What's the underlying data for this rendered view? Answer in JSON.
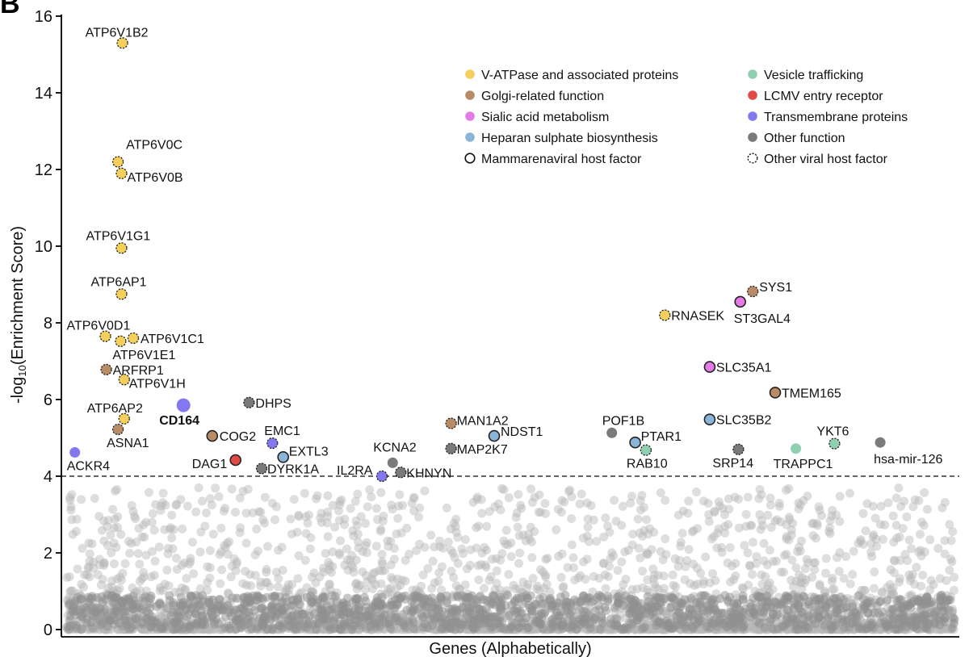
{
  "panel_label": "B",
  "chart_data": {
    "type": "scatter",
    "title": "",
    "xlabel": "Genes (Alphabetically)",
    "ylabel_prefix": "-log",
    "ylabel_subscript": "10",
    "ylabel_suffix": "(Enrichment Score)",
    "ylim": [
      0,
      16
    ],
    "yticks": [
      0,
      2,
      4,
      6,
      8,
      10,
      12,
      14,
      16
    ],
    "threshold": 4,
    "grid": false,
    "legend_position": "top-right",
    "colors": {
      "vatpase": "#f5cf5c",
      "golgi": "#b98c68",
      "sialic": "#e47ae6",
      "heparan": "#8ab4d8",
      "vesicle": "#8fd0b0",
      "lcmv": "#e04c45",
      "transmembrane": "#8378f0",
      "other": "#7a7a7a",
      "background": "#b5b5b5"
    },
    "legend": [
      {
        "key": "vatpase",
        "label": "V-ATPase and associated proteins",
        "style": "fill"
      },
      {
        "key": "golgi",
        "label": "Golgi-related function",
        "style": "fill"
      },
      {
        "key": "sialic",
        "label": "Sialic acid metabolism",
        "style": "fill"
      },
      {
        "key": "heparan",
        "label": "Heparan sulphate biosynthesis",
        "style": "fill"
      },
      {
        "key": "mamma",
        "label": "Mammarenaviral host factor",
        "style": "solid-ring"
      },
      {
        "key": "vesicle",
        "label": "Vesicle trafficking",
        "style": "fill"
      },
      {
        "key": "lcmv",
        "label": "LCMV entry receptor",
        "style": "fill"
      },
      {
        "key": "transmembrane",
        "label": "Transmembrane proteins",
        "style": "fill"
      },
      {
        "key": "other",
        "label": "Other function",
        "style": "fill"
      },
      {
        "key": "otherviral",
        "label": "Other viral host factor",
        "style": "dashed-ring"
      }
    ],
    "points": [
      {
        "gene": "ATP6V1B2",
        "x": 0.068,
        "y": 15.3,
        "cat": "vatpase",
        "ring": "dashed",
        "size": "normal"
      },
      {
        "gene": "ATP6V0C",
        "x": 0.063,
        "y": 12.2,
        "cat": "vatpase",
        "ring": "dashed",
        "size": "normal"
      },
      {
        "gene": "ATP6V0B",
        "x": 0.067,
        "y": 11.9,
        "cat": "vatpase",
        "ring": "dashed",
        "size": "normal"
      },
      {
        "gene": "ATP6V1G1",
        "x": 0.067,
        "y": 9.95,
        "cat": "vatpase",
        "ring": "dashed",
        "size": "normal"
      },
      {
        "gene": "ATP6AP1",
        "x": 0.067,
        "y": 8.75,
        "cat": "vatpase",
        "ring": "dashed",
        "size": "normal"
      },
      {
        "gene": "ATP6V0D1",
        "x": 0.049,
        "y": 7.65,
        "cat": "vatpase",
        "ring": "dashed",
        "size": "normal"
      },
      {
        "gene": "ATP6V1E1",
        "x": 0.066,
        "y": 7.52,
        "cat": "vatpase",
        "ring": "dashed",
        "size": "normal"
      },
      {
        "gene": "ATP6V1C1",
        "x": 0.08,
        "y": 7.6,
        "cat": "vatpase",
        "ring": "dashed",
        "size": "normal"
      },
      {
        "gene": "ARFRP1",
        "x": 0.05,
        "y": 6.78,
        "cat": "golgi",
        "ring": "dashed",
        "size": "normal"
      },
      {
        "gene": "ATP6V1H",
        "x": 0.07,
        "y": 6.52,
        "cat": "vatpase",
        "ring": "dashed",
        "size": "normal"
      },
      {
        "gene": "ATP6AP2",
        "x": 0.07,
        "y": 5.5,
        "cat": "vatpase",
        "ring": "dashed",
        "size": "normal"
      },
      {
        "gene": "ASNA1",
        "x": 0.063,
        "y": 5.22,
        "cat": "golgi",
        "ring": "dashed",
        "size": "normal"
      },
      {
        "gene": "CD164",
        "x": 0.136,
        "y": 5.85,
        "cat": "transmembrane",
        "ring": "none",
        "size": "large"
      },
      {
        "gene": "ACKR4",
        "x": 0.015,
        "y": 4.62,
        "cat": "transmembrane",
        "ring": "none",
        "size": "normal"
      },
      {
        "gene": "COG2",
        "x": 0.168,
        "y": 5.05,
        "cat": "golgi",
        "ring": "solid",
        "size": "normal"
      },
      {
        "gene": "DAG1",
        "x": 0.194,
        "y": 4.42,
        "cat": "lcmv",
        "ring": "solid",
        "size": "normal"
      },
      {
        "gene": "DHPS",
        "x": 0.209,
        "y": 5.92,
        "cat": "other",
        "ring": "dashed",
        "size": "normal"
      },
      {
        "gene": "EMC1",
        "x": 0.235,
        "y": 4.86,
        "cat": "transmembrane",
        "ring": "dashed",
        "size": "normal"
      },
      {
        "gene": "EXTL3",
        "x": 0.247,
        "y": 4.5,
        "cat": "heparan",
        "ring": "solid",
        "size": "normal"
      },
      {
        "gene": "DYRK1A",
        "x": 0.223,
        "y": 4.2,
        "cat": "other",
        "ring": "dashed",
        "size": "normal"
      },
      {
        "gene": "IL2RA",
        "x": 0.357,
        "y": 4.0,
        "cat": "transmembrane",
        "ring": "dashed",
        "size": "normal"
      },
      {
        "gene": "KCNA2",
        "x": 0.369,
        "y": 4.35,
        "cat": "other",
        "ring": "none",
        "size": "normal"
      },
      {
        "gene": "KHNYN",
        "x": 0.378,
        "y": 4.1,
        "cat": "other",
        "ring": "dashed",
        "size": "normal"
      },
      {
        "gene": "MAN1A2",
        "x": 0.434,
        "y": 5.38,
        "cat": "golgi",
        "ring": "dashed",
        "size": "normal"
      },
      {
        "gene": "MAP2K7",
        "x": 0.434,
        "y": 4.72,
        "cat": "other",
        "ring": "dashed",
        "size": "normal"
      },
      {
        "gene": "NDST1",
        "x": 0.482,
        "y": 5.05,
        "cat": "heparan",
        "ring": "solid",
        "size": "normal"
      },
      {
        "gene": "POF1B",
        "x": 0.613,
        "y": 5.13,
        "cat": "other",
        "ring": "none",
        "size": "normal"
      },
      {
        "gene": "PTAR1",
        "x": 0.639,
        "y": 4.88,
        "cat": "heparan",
        "ring": "solid",
        "size": "normal"
      },
      {
        "gene": "RAB10",
        "x": 0.651,
        "y": 4.68,
        "cat": "vesicle",
        "ring": "dashed",
        "size": "normal"
      },
      {
        "gene": "RNASEK",
        "x": 0.672,
        "y": 8.2,
        "cat": "vatpase",
        "ring": "dashed",
        "size": "normal"
      },
      {
        "gene": "SYS1",
        "x": 0.77,
        "y": 8.82,
        "cat": "golgi",
        "ring": "dashed",
        "size": "normal"
      },
      {
        "gene": "ST3GAL4",
        "x": 0.756,
        "y": 8.55,
        "cat": "sialic",
        "ring": "solid",
        "size": "normal"
      },
      {
        "gene": "SLC35A1",
        "x": 0.722,
        "y": 6.85,
        "cat": "sialic",
        "ring": "solid",
        "size": "normal"
      },
      {
        "gene": "TMEM165",
        "x": 0.795,
        "y": 6.18,
        "cat": "golgi",
        "ring": "solid",
        "size": "normal"
      },
      {
        "gene": "SLC35B2",
        "x": 0.722,
        "y": 5.48,
        "cat": "heparan",
        "ring": "solid",
        "size": "normal"
      },
      {
        "gene": "SRP14",
        "x": 0.754,
        "y": 4.7,
        "cat": "other",
        "ring": "dashed",
        "size": "normal"
      },
      {
        "gene": "TRAPPC1",
        "x": 0.818,
        "y": 4.72,
        "cat": "vesicle",
        "ring": "none",
        "size": "normal"
      },
      {
        "gene": "YKT6",
        "x": 0.861,
        "y": 4.85,
        "cat": "vesicle",
        "ring": "dashed",
        "size": "normal"
      },
      {
        "gene": "hsa-mir-126",
        "x": 0.912,
        "y": 4.88,
        "cat": "other",
        "ring": "none",
        "size": "normal"
      }
    ]
  }
}
